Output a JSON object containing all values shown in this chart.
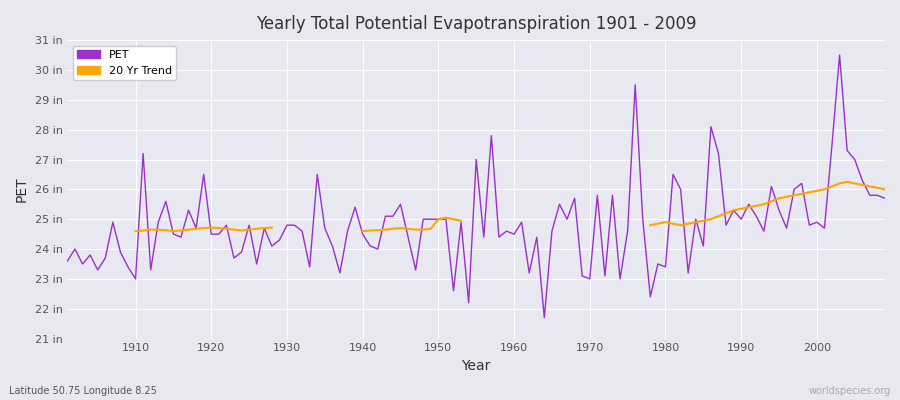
{
  "title": "Yearly Total Potential Evapotranspiration 1901 - 2009",
  "xlabel": "Year",
  "ylabel": "PET",
  "lat_lon_label": "Latitude 50.75 Longitude 8.25",
  "watermark": "worldspecies.org",
  "pet_color": "#9B30CC",
  "trend_color": "#FFA500",
  "background_color": "#E8E8F0",
  "plot_bg_color": "#E8E8F0",
  "ylim": [
    21,
    31
  ],
  "ytick_labels": [
    "21 in",
    "22 in",
    "23 in",
    "24 in",
    "25 in",
    "26 in",
    "27 in",
    "28 in",
    "29 in",
    "30 in",
    "31 in"
  ],
  "ytick_values": [
    21,
    22,
    23,
    24,
    25,
    26,
    27,
    28,
    29,
    30,
    31
  ],
  "years": [
    1901,
    1902,
    1903,
    1904,
    1905,
    1906,
    1907,
    1908,
    1909,
    1910,
    1911,
    1912,
    1913,
    1914,
    1915,
    1916,
    1917,
    1918,
    1919,
    1920,
    1921,
    1922,
    1923,
    1924,
    1925,
    1926,
    1927,
    1928,
    1929,
    1930,
    1931,
    1932,
    1933,
    1934,
    1935,
    1936,
    1937,
    1938,
    1939,
    1940,
    1941,
    1942,
    1943,
    1944,
    1945,
    1946,
    1947,
    1948,
    1949,
    1950,
    1951,
    1952,
    1953,
    1954,
    1955,
    1956,
    1957,
    1958,
    1959,
    1960,
    1961,
    1962,
    1963,
    1964,
    1965,
    1966,
    1967,
    1968,
    1969,
    1970,
    1971,
    1972,
    1973,
    1974,
    1975,
    1976,
    1977,
    1978,
    1979,
    1980,
    1981,
    1982,
    1983,
    1984,
    1985,
    1986,
    1987,
    1988,
    1989,
    1990,
    1991,
    1992,
    1993,
    1994,
    1995,
    1996,
    1997,
    1998,
    1999,
    2000,
    2001,
    2002,
    2003,
    2004,
    2005,
    2006,
    2007,
    2008,
    2009
  ],
  "pet_values": [
    23.6,
    24.0,
    23.5,
    23.8,
    23.3,
    23.7,
    24.9,
    23.9,
    23.4,
    23.0,
    27.2,
    23.3,
    24.9,
    25.6,
    24.5,
    24.4,
    25.3,
    24.7,
    26.5,
    24.5,
    24.5,
    24.8,
    23.7,
    23.9,
    24.8,
    23.5,
    24.7,
    24.1,
    24.3,
    24.8,
    24.8,
    24.6,
    23.4,
    26.5,
    24.7,
    24.1,
    23.2,
    24.6,
    25.4,
    24.5,
    24.1,
    24.0,
    25.1,
    25.1,
    25.5,
    24.4,
    23.3,
    25.0,
    25.0,
    25.0,
    25.0,
    22.6,
    24.9,
    22.2,
    27.0,
    24.4,
    27.8,
    24.4,
    24.6,
    24.5,
    24.9,
    23.2,
    24.4,
    21.7,
    24.6,
    25.5,
    25.0,
    25.7,
    23.1,
    23.0,
    25.8,
    23.1,
    25.8,
    23.0,
    24.6,
    29.5,
    25.0,
    22.4,
    23.5,
    23.4,
    26.5,
    26.0,
    23.2,
    25.0,
    24.1,
    28.1,
    27.2,
    24.8,
    25.3,
    25.0,
    25.5,
    25.1,
    24.6,
    26.1,
    25.3,
    24.7,
    26.0,
    26.2,
    24.8,
    24.9,
    24.7,
    27.5,
    30.5,
    27.3,
    27.0,
    26.3,
    25.8,
    25.8,
    25.7
  ],
  "trend_segments": [
    {
      "years": [
        1910,
        1911,
        1912,
        1913,
        1914,
        1915,
        1916,
        1917,
        1918,
        1919,
        1920,
        1921,
        1922,
        1923,
        1924,
        1925,
        1926,
        1927,
        1928
      ],
      "values": [
        24.6,
        24.62,
        24.65,
        24.65,
        24.63,
        24.6,
        24.62,
        24.65,
        24.68,
        24.7,
        24.72,
        24.7,
        24.68,
        24.65,
        24.62,
        24.65,
        24.68,
        24.7,
        24.72
      ]
    },
    {
      "years": [
        1940,
        1941,
        1942,
        1943,
        1944,
        1945,
        1946,
        1947,
        1948,
        1949,
        1950,
        1951,
        1952,
        1953
      ],
      "values": [
        24.6,
        24.62,
        24.63,
        24.65,
        24.68,
        24.7,
        24.68,
        24.65,
        24.65,
        24.68,
        25.0,
        25.05,
        25.0,
        24.95
      ]
    },
    {
      "years": [
        1978,
        1979,
        1980,
        1981,
        1982,
        1983,
        1984,
        1985,
        1986,
        1987,
        1988,
        1989,
        1990,
        1991,
        1992,
        1993,
        1994,
        1995,
        1996,
        1997,
        1998,
        1999,
        2000,
        2001,
        2002,
        2003,
        2004,
        2005,
        2006,
        2007,
        2008,
        2009
      ],
      "values": [
        24.8,
        24.85,
        24.9,
        24.85,
        24.8,
        24.85,
        24.9,
        24.95,
        25.0,
        25.1,
        25.2,
        25.3,
        25.35,
        25.4,
        25.45,
        25.5,
        25.6,
        25.7,
        25.75,
        25.8,
        25.85,
        25.9,
        25.95,
        26.0,
        26.1,
        26.2,
        26.25,
        26.2,
        26.15,
        26.1,
        26.05,
        26.0
      ]
    }
  ]
}
